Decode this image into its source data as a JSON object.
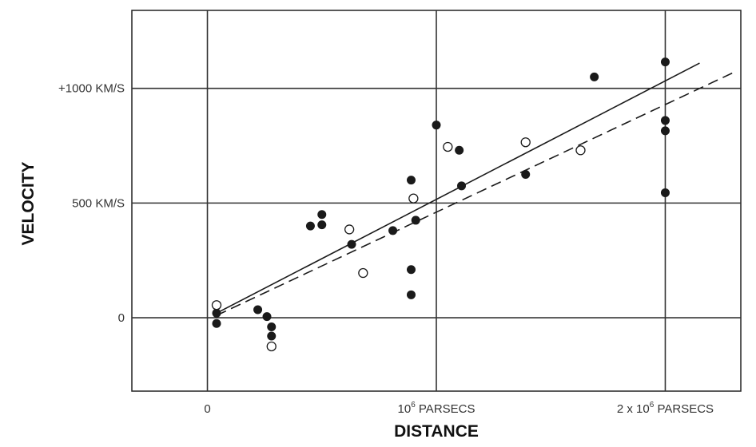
{
  "chart_data": {
    "type": "scatter",
    "xlabel": "DISTANCE",
    "ylabel": "VELOCITY",
    "xlim": [
      -330000,
      2330000
    ],
    "ylim": [
      -320,
      1340
    ],
    "x_ticks": [
      {
        "value": 0,
        "label": "0"
      },
      {
        "value": 1000000,
        "label": "10",
        "sup": "6",
        "suffix": " PARSECS"
      },
      {
        "value": 2000000,
        "label": "2 x 10",
        "sup": "6",
        "suffix": " PARSECS"
      }
    ],
    "y_ticks": [
      {
        "value": 0,
        "label": "0"
      },
      {
        "value": 500,
        "label": "500 KM/S"
      },
      {
        "value": 1000,
        "label": "+1000 KM/S"
      }
    ],
    "grid": true,
    "series": [
      {
        "marker": "filled",
        "color": "#1a1a1a",
        "points": [
          [
            40000,
            20
          ],
          [
            40000,
            -25
          ],
          [
            220000,
            35
          ],
          [
            260000,
            5
          ],
          [
            280000,
            -40
          ],
          [
            280000,
            -80
          ],
          [
            450000,
            400
          ],
          [
            500000,
            450
          ],
          [
            500000,
            405
          ],
          [
            630000,
            320
          ],
          [
            810000,
            380
          ],
          [
            890000,
            600
          ],
          [
            890000,
            210
          ],
          [
            890000,
            100
          ],
          [
            910000,
            425
          ],
          [
            1000000,
            840
          ],
          [
            1100000,
            730
          ],
          [
            1110000,
            575
          ],
          [
            1390000,
            625
          ],
          [
            1690000,
            1050
          ],
          [
            2000000,
            1115
          ],
          [
            2000000,
            860
          ],
          [
            2000000,
            815
          ],
          [
            2000000,
            545
          ]
        ]
      },
      {
        "marker": "open",
        "color": "#1a1a1a",
        "points": [
          [
            40000,
            55
          ],
          [
            280000,
            -125
          ],
          [
            620000,
            385
          ],
          [
            680000,
            195
          ],
          [
            900000,
            520
          ],
          [
            1050000,
            745
          ],
          [
            1390000,
            765
          ],
          [
            1630000,
            730
          ]
        ]
      }
    ],
    "fit_lines": [
      {
        "style": "solid",
        "x": [
          40000,
          2150000
        ],
        "y": [
          20,
          1110
        ]
      },
      {
        "style": "dashed",
        "x": [
          40000,
          2300000
        ],
        "y": [
          10,
          1070
        ]
      }
    ]
  }
}
